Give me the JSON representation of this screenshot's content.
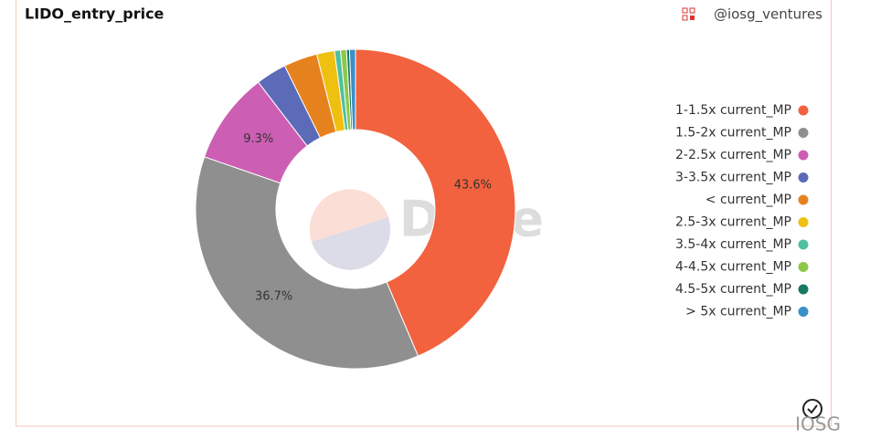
{
  "chart_data": {
    "type": "donut",
    "title": "LIDO_entry_price",
    "source": "@iosg_ventures",
    "watermark": "Dune",
    "categories": [
      "1-1.5x current_MP",
      "1.5-2x current_MP",
      "2-2.5x current_MP",
      "3-3.5x current_MP",
      "< current_MP",
      "2.5-3x current_MP",
      "3.5-4x current_MP",
      "4-4.5x current_MP",
      "4.5-5x current_MP",
      "> 5x current_MP"
    ],
    "values": [
      43.6,
      36.7,
      9.3,
      3.1,
      3.4,
      1.8,
      0.6,
      0.6,
      0.3,
      0.6
    ],
    "value_labels": [
      "43.6%",
      "36.7%",
      "9.3%",
      null,
      null,
      null,
      null,
      null,
      null,
      null
    ],
    "colors": [
      "#f2623e",
      "#8f8f8f",
      "#cc5fb4",
      "#5c6bb8",
      "#e6821e",
      "#f0c010",
      "#4fbfa0",
      "#8cc84b",
      "#1b7a63",
      "#3a8fc8"
    ]
  },
  "footer": "IOSG"
}
